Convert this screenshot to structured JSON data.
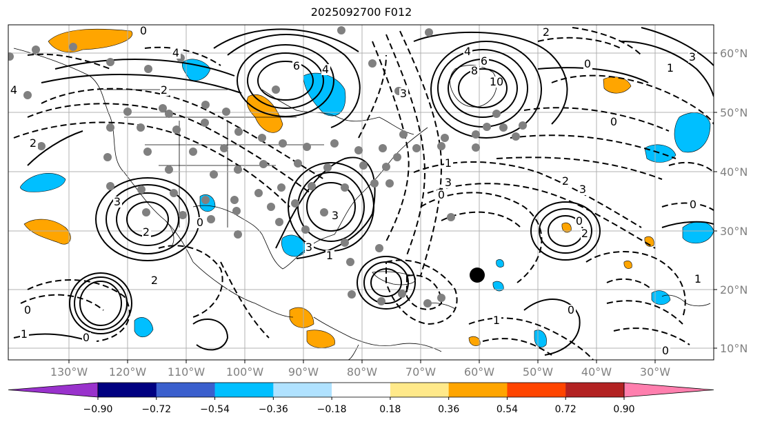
{
  "title": "2025092700 F012",
  "map": {
    "lat_labels": [
      "60°N",
      "50°N",
      "40°N",
      "30°N",
      "20°N",
      "10°N"
    ],
    "lon_labels": [
      "130°W",
      "120°W",
      "110°W",
      "100°W",
      "90°W",
      "80°W",
      "70°W",
      "60°W",
      "50°W",
      "40°W",
      "30°W"
    ],
    "contour_labels": [
      "0",
      "4",
      "4",
      "6",
      "4",
      "8",
      "6",
      "10",
      "2",
      "0",
      "1",
      "3",
      "4",
      "2",
      "3",
      "2",
      "0",
      "3",
      "2",
      "3",
      "0",
      "3",
      "1",
      "2",
      "3",
      "0",
      "2",
      "0",
      "3",
      "1",
      "0",
      "2",
      "1",
      "0",
      "1",
      "0",
      "1",
      "0",
      "0"
    ]
  },
  "colorbar": {
    "ticks": [
      "−0.90",
      "−0.72",
      "−0.54",
      "−0.36",
      "−0.18",
      "0.18",
      "0.36",
      "0.54",
      "0.72",
      "0.90"
    ],
    "colors": [
      "#9932cc",
      "#000080",
      "#3a5fcd",
      "#00bfff",
      "#b0e2ff",
      "#ffffff",
      "#ffe98a",
      "#ffa500",
      "#ff4500",
      "#b22222",
      "#ff7fae"
    ]
  }
}
